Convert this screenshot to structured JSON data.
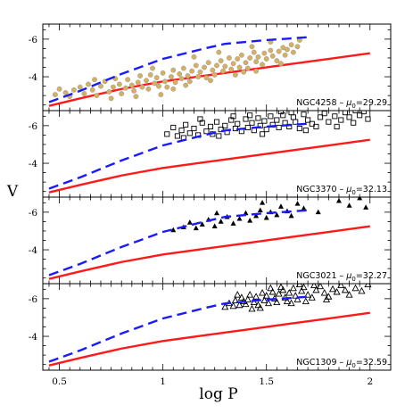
{
  "chart_data": {
    "type": "scatter",
    "xlabel": "log P",
    "ylabel": "V",
    "xlim": [
      0.42,
      2.1
    ],
    "ylim_inverted": [
      -2.2,
      -6.8
    ],
    "x_ticks": [
      "0.5",
      "1",
      "1.5",
      "2"
    ],
    "y_ticks": [
      "-6",
      "-4"
    ],
    "colors": {
      "red_line": "#ff1a1a",
      "blue_dashed": "#1a1aff",
      "ngc4258_points": "#d4b062",
      "ngc4258_point_edge": "#9a9a9a",
      "markers": "#000000"
    },
    "reference_curves": {
      "red_solid": {
        "x": [
          0.45,
          0.6,
          0.8,
          1.0,
          1.2,
          1.4,
          1.6,
          1.8,
          2.0
        ],
        "y": [
          -2.45,
          -2.85,
          -3.35,
          -3.75,
          -4.05,
          -4.35,
          -4.65,
          -4.95,
          -5.25
        ]
      },
      "blue_dashed": {
        "x": [
          0.45,
          0.6,
          0.8,
          1.0,
          1.2,
          1.3,
          1.4,
          1.5,
          1.7
        ],
        "y": [
          -2.65,
          -3.25,
          -4.15,
          -4.95,
          -5.5,
          -5.75,
          -5.85,
          -5.95,
          -6.1
        ]
      }
    },
    "panels": [
      {
        "label": "NGC4258",
        "mu_text": "μ",
        "mu_sub": "0",
        "mu_value": "=29.29",
        "marker": "circle",
        "points": [
          [
            0.48,
            -3.05
          ],
          [
            0.5,
            -3.35
          ],
          [
            0.53,
            -3.15
          ],
          [
            0.55,
            -2.95
          ],
          [
            0.57,
            -3.3
          ],
          [
            0.6,
            -3.45
          ],
          [
            0.62,
            -3.1
          ],
          [
            0.64,
            -3.6
          ],
          [
            0.66,
            -3.3
          ],
          [
            0.68,
            -3.0
          ],
          [
            0.7,
            -3.5
          ],
          [
            0.72,
            -3.75
          ],
          [
            0.74,
            -3.2
          ],
          [
            0.76,
            -3.45
          ],
          [
            0.77,
            -3.9
          ],
          [
            0.79,
            -3.6
          ],
          [
            0.8,
            -3.1
          ],
          [
            0.82,
            -3.4
          ],
          [
            0.83,
            -3.85
          ],
          [
            0.85,
            -3.55
          ],
          [
            0.86,
            -3.25
          ],
          [
            0.88,
            -3.7
          ],
          [
            0.89,
            -4.05
          ],
          [
            0.9,
            -3.45
          ],
          [
            0.92,
            -3.8
          ],
          [
            0.93,
            -3.35
          ],
          [
            0.94,
            -4.1
          ],
          [
            0.96,
            -3.65
          ],
          [
            0.97,
            -3.95
          ],
          [
            0.98,
            -3.5
          ],
          [
            1.0,
            -4.2
          ],
          [
            1.01,
            -3.75
          ],
          [
            1.02,
            -3.45
          ],
          [
            1.04,
            -4.0
          ],
          [
            1.05,
            -4.35
          ],
          [
            1.06,
            -3.7
          ],
          [
            1.08,
            -4.15
          ],
          [
            1.09,
            -3.9
          ],
          [
            1.1,
            -4.45
          ],
          [
            1.12,
            -4.05
          ],
          [
            1.13,
            -3.75
          ],
          [
            1.14,
            -4.3
          ],
          [
            1.16,
            -4.6
          ],
          [
            1.17,
            -4.0
          ],
          [
            1.18,
            -4.25
          ],
          [
            1.2,
            -4.5
          ],
          [
            1.21,
            -3.95
          ],
          [
            1.22,
            -4.75
          ],
          [
            1.24,
            -4.35
          ],
          [
            1.25,
            -4.1
          ],
          [
            1.26,
            -4.6
          ],
          [
            1.28,
            -4.85
          ],
          [
            1.29,
            -4.3
          ],
          [
            1.3,
            -4.55
          ],
          [
            1.32,
            -5.0
          ],
          [
            1.33,
            -4.4
          ],
          [
            1.34,
            -4.7
          ],
          [
            1.36,
            -4.95
          ],
          [
            1.37,
            -4.5
          ],
          [
            1.38,
            -5.15
          ],
          [
            1.4,
            -4.75
          ],
          [
            1.41,
            -4.45
          ],
          [
            1.42,
            -5.0
          ],
          [
            1.44,
            -5.3
          ],
          [
            1.45,
            -4.8
          ],
          [
            1.46,
            -5.05
          ],
          [
            1.48,
            -4.65
          ],
          [
            1.49,
            -5.25
          ],
          [
            1.5,
            -4.95
          ],
          [
            1.52,
            -5.4
          ],
          [
            1.53,
            -5.1
          ],
          [
            1.55,
            -4.85
          ],
          [
            1.56,
            -5.35
          ],
          [
            1.58,
            -5.55
          ],
          [
            1.59,
            -5.15
          ],
          [
            1.6,
            -5.45
          ],
          [
            1.62,
            -5.7
          ],
          [
            1.63,
            -5.3
          ],
          [
            1.65,
            -5.6
          ],
          [
            1.66,
            -5.95
          ],
          [
            1.45,
            -4.3
          ],
          [
            1.52,
            -5.85
          ],
          [
            0.75,
            -2.85
          ],
          [
            1.15,
            -5.05
          ],
          [
            1.35,
            -4.1
          ],
          [
            0.95,
            -4.45
          ],
          [
            1.05,
            -3.35
          ],
          [
            1.27,
            -5.3
          ],
          [
            0.87,
            -2.95
          ],
          [
            1.57,
            -4.7
          ],
          [
            1.43,
            -5.6
          ],
          [
            1.23,
            -3.8
          ],
          [
            0.67,
            -3.85
          ],
          [
            1.11,
            -3.55
          ],
          [
            0.99,
            -3.05
          ],
          [
            1.39,
            -4.25
          ]
        ]
      },
      {
        "label": "NGC3370",
        "mu_text": "μ",
        "mu_sub": "0",
        "mu_value": "=32.13",
        "marker": "square",
        "points": [
          [
            1.02,
            -5.55
          ],
          [
            1.05,
            -5.9
          ],
          [
            1.07,
            -5.45
          ],
          [
            1.09,
            -5.75
          ],
          [
            1.11,
            -6.05
          ],
          [
            1.13,
            -5.6
          ],
          [
            1.15,
            -5.85
          ],
          [
            1.17,
            -5.5
          ],
          [
            1.19,
            -6.15
          ],
          [
            1.21,
            -5.7
          ],
          [
            1.23,
            -5.95
          ],
          [
            1.24,
            -5.55
          ],
          [
            1.26,
            -6.2
          ],
          [
            1.28,
            -5.8
          ],
          [
            1.3,
            -6.0
          ],
          [
            1.31,
            -5.65
          ],
          [
            1.33,
            -6.3
          ],
          [
            1.35,
            -5.85
          ],
          [
            1.36,
            -6.1
          ],
          [
            1.38,
            -5.7
          ],
          [
            1.4,
            -6.35
          ],
          [
            1.41,
            -5.9
          ],
          [
            1.43,
            -6.15
          ],
          [
            1.44,
            -5.75
          ],
          [
            1.46,
            -6.4
          ],
          [
            1.47,
            -6.0
          ],
          [
            1.49,
            -6.25
          ],
          [
            1.5,
            -5.8
          ],
          [
            1.52,
            -6.5
          ],
          [
            1.53,
            -6.05
          ],
          [
            1.55,
            -6.3
          ],
          [
            1.56,
            -5.9
          ],
          [
            1.58,
            -6.55
          ],
          [
            1.59,
            -6.15
          ],
          [
            1.61,
            -5.95
          ],
          [
            1.63,
            -6.45
          ],
          [
            1.64,
            -6.2
          ],
          [
            1.66,
            -5.85
          ],
          [
            1.68,
            -6.6
          ],
          [
            1.7,
            -6.3
          ],
          [
            1.72,
            -6.1
          ],
          [
            1.74,
            -5.95
          ],
          [
            1.76,
            -6.45
          ],
          [
            1.78,
            -6.65
          ],
          [
            1.8,
            -6.2
          ],
          [
            1.83,
            -6.5
          ],
          [
            1.86,
            -6.3
          ],
          [
            1.88,
            -6.7
          ],
          [
            1.9,
            -6.45
          ],
          [
            1.92,
            -6.15
          ],
          [
            1.95,
            -6.55
          ],
          [
            1.97,
            -6.75
          ],
          [
            1.99,
            -6.35
          ],
          [
            1.18,
            -6.35
          ],
          [
            1.34,
            -6.5
          ],
          [
            1.48,
            -5.55
          ],
          [
            1.62,
            -6.7
          ],
          [
            1.1,
            -5.35
          ],
          [
            1.27,
            -5.45
          ],
          [
            1.57,
            -6.75
          ],
          [
            1.42,
            -6.55
          ],
          [
            1.69,
            -5.75
          ],
          [
            1.84,
            -5.95
          ],
          [
            1.93,
            -6.8
          ]
        ]
      },
      {
        "label": "NGC3021",
        "mu_text": "μ",
        "mu_sub": "0",
        "mu_value": "=32.27",
        "marker": "triangle-filled",
        "points": [
          [
            1.05,
            -5.05
          ],
          [
            1.1,
            -5.2
          ],
          [
            1.13,
            -5.45
          ],
          [
            1.16,
            -5.15
          ],
          [
            1.19,
            -5.35
          ],
          [
            1.22,
            -5.6
          ],
          [
            1.25,
            -5.25
          ],
          [
            1.28,
            -5.5
          ],
          [
            1.31,
            -5.75
          ],
          [
            1.34,
            -5.4
          ],
          [
            1.37,
            -5.65
          ],
          [
            1.4,
            -5.95
          ],
          [
            1.42,
            -5.55
          ],
          [
            1.45,
            -5.8
          ],
          [
            1.47,
            -6.1
          ],
          [
            1.5,
            -5.7
          ],
          [
            1.52,
            -6.0
          ],
          [
            1.55,
            -5.85
          ],
          [
            1.57,
            -6.3
          ],
          [
            1.6,
            -6.05
          ],
          [
            1.62,
            -5.8
          ],
          [
            1.65,
            -6.45
          ],
          [
            1.68,
            -6.2
          ],
          [
            1.75,
            -6.0
          ],
          [
            1.85,
            -6.6
          ],
          [
            1.9,
            -6.35
          ],
          [
            1.95,
            -6.75
          ],
          [
            1.98,
            -6.25
          ],
          [
            1.26,
            -5.95
          ],
          [
            1.48,
            -6.5
          ]
        ]
      },
      {
        "label": "NGC1309",
        "mu_text": "μ",
        "mu_sub": "0",
        "mu_value": "=32.59",
        "marker": "triangle-open",
        "points": [
          [
            1.3,
            -5.55
          ],
          [
            1.32,
            -5.75
          ],
          [
            1.34,
            -5.6
          ],
          [
            1.35,
            -5.9
          ],
          [
            1.37,
            -5.65
          ],
          [
            1.38,
            -6.05
          ],
          [
            1.4,
            -5.7
          ],
          [
            1.41,
            -5.95
          ],
          [
            1.42,
            -6.2
          ],
          [
            1.44,
            -5.8
          ],
          [
            1.45,
            -6.1
          ],
          [
            1.46,
            -5.65
          ],
          [
            1.48,
            -6.3
          ],
          [
            1.49,
            -5.9
          ],
          [
            1.5,
            -6.15
          ],
          [
            1.51,
            -5.75
          ],
          [
            1.53,
            -6.35
          ],
          [
            1.54,
            -6.0
          ],
          [
            1.55,
            -5.8
          ],
          [
            1.56,
            -6.25
          ],
          [
            1.58,
            -6.45
          ],
          [
            1.59,
            -6.05
          ],
          [
            1.6,
            -5.85
          ],
          [
            1.61,
            -6.3
          ],
          [
            1.63,
            -6.55
          ],
          [
            1.64,
            -6.15
          ],
          [
            1.65,
            -5.95
          ],
          [
            1.67,
            -6.4
          ],
          [
            1.68,
            -6.6
          ],
          [
            1.7,
            -6.2
          ],
          [
            1.72,
            -6.05
          ],
          [
            1.74,
            -6.45
          ],
          [
            1.76,
            -6.65
          ],
          [
            1.78,
            -6.3
          ],
          [
            1.8,
            -6.1
          ],
          [
            1.82,
            -6.5
          ],
          [
            1.84,
            -6.35
          ],
          [
            1.86,
            -6.7
          ],
          [
            1.88,
            -6.45
          ],
          [
            1.9,
            -6.2
          ],
          [
            1.93,
            -6.55
          ],
          [
            1.96,
            -6.4
          ],
          [
            1.99,
            -6.75
          ],
          [
            1.43,
            -5.45
          ],
          [
            1.52,
            -6.55
          ],
          [
            1.62,
            -5.75
          ],
          [
            1.73,
            -6.7
          ],
          [
            1.57,
            -6.6
          ],
          [
            1.36,
            -6.2
          ],
          [
            1.47,
            -5.5
          ],
          [
            1.66,
            -6.75
          ],
          [
            1.79,
            -5.95
          ],
          [
            1.39,
            -5.85
          ],
          [
            1.69,
            -5.85
          ]
        ]
      }
    ]
  }
}
